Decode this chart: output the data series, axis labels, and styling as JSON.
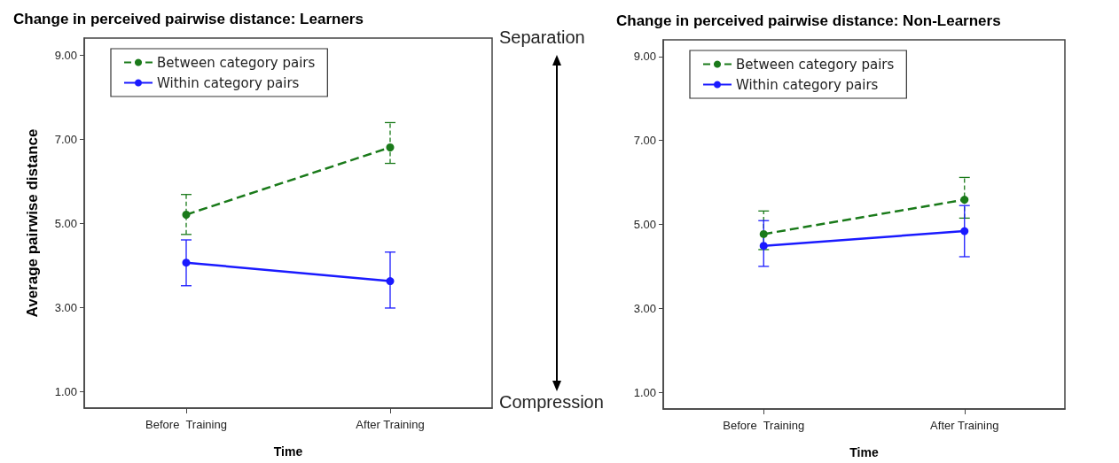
{
  "chart_data": [
    {
      "type": "line",
      "title": "Change in perceived pairwise distance: Learners",
      "xlabel": "Time",
      "ylabel": "Average pairwise distance",
      "categories": [
        "Before  Training",
        "After Training"
      ],
      "series": [
        {
          "name": "Between category pairs",
          "color": "#1a7a1a",
          "line_style": "dashed",
          "values": [
            5.2,
            6.8
          ],
          "errors": [
            [
              4.73,
              5.68
            ],
            [
              6.42,
              7.39
            ]
          ]
        },
        {
          "name": "Within category pairs",
          "color": "#1a1aff",
          "line_style": "solid",
          "values": [
            4.06,
            3.62
          ],
          "errors": [
            [
              3.51,
              4.6
            ],
            [
              2.98,
              4.31
            ]
          ]
        }
      ],
      "ylim": [
        0.6,
        9.4
      ],
      "yticks": [
        {
          "value": 1,
          "label": "1.00"
        },
        {
          "value": 3,
          "label": "3.00"
        },
        {
          "value": 5,
          "label": "5.00"
        },
        {
          "value": 7,
          "label": "7.00"
        },
        {
          "value": 9,
          "label": "9.00"
        }
      ],
      "marker": "circle",
      "grid": false,
      "legend": "top left",
      "annotations": [
        "Separation",
        "Compression"
      ]
    },
    {
      "type": "line",
      "title": "Change in perceived pairwise distance: Non-Learners",
      "xlabel": "Time",
      "categories": [
        "Before  Training",
        "After Training"
      ],
      "series": [
        {
          "name": "Between category pairs",
          "color": "#1a7a1a",
          "line_style": "dashed",
          "values": [
            4.77,
            5.59
          ],
          "errors": [
            [
              4.4,
              5.32
            ],
            [
              5.15,
              6.12
            ]
          ]
        },
        {
          "name": "Within category pairs",
          "color": "#1a1aff",
          "line_style": "solid",
          "values": [
            4.49,
            4.84
          ],
          "errors": [
            [
              4.0,
              5.09
            ],
            [
              4.23,
              5.45
            ]
          ]
        }
      ],
      "ylim": [
        0.6,
        9.4
      ],
      "yticks": [
        {
          "value": 1,
          "label": "1.00"
        },
        {
          "value": 3,
          "label": "3.00"
        },
        {
          "value": 5,
          "label": "5.00"
        },
        {
          "value": 7,
          "label": "7.00"
        },
        {
          "value": 9,
          "label": "9.00"
        }
      ],
      "marker": "circle",
      "grid": false,
      "legend": "top left"
    }
  ]
}
